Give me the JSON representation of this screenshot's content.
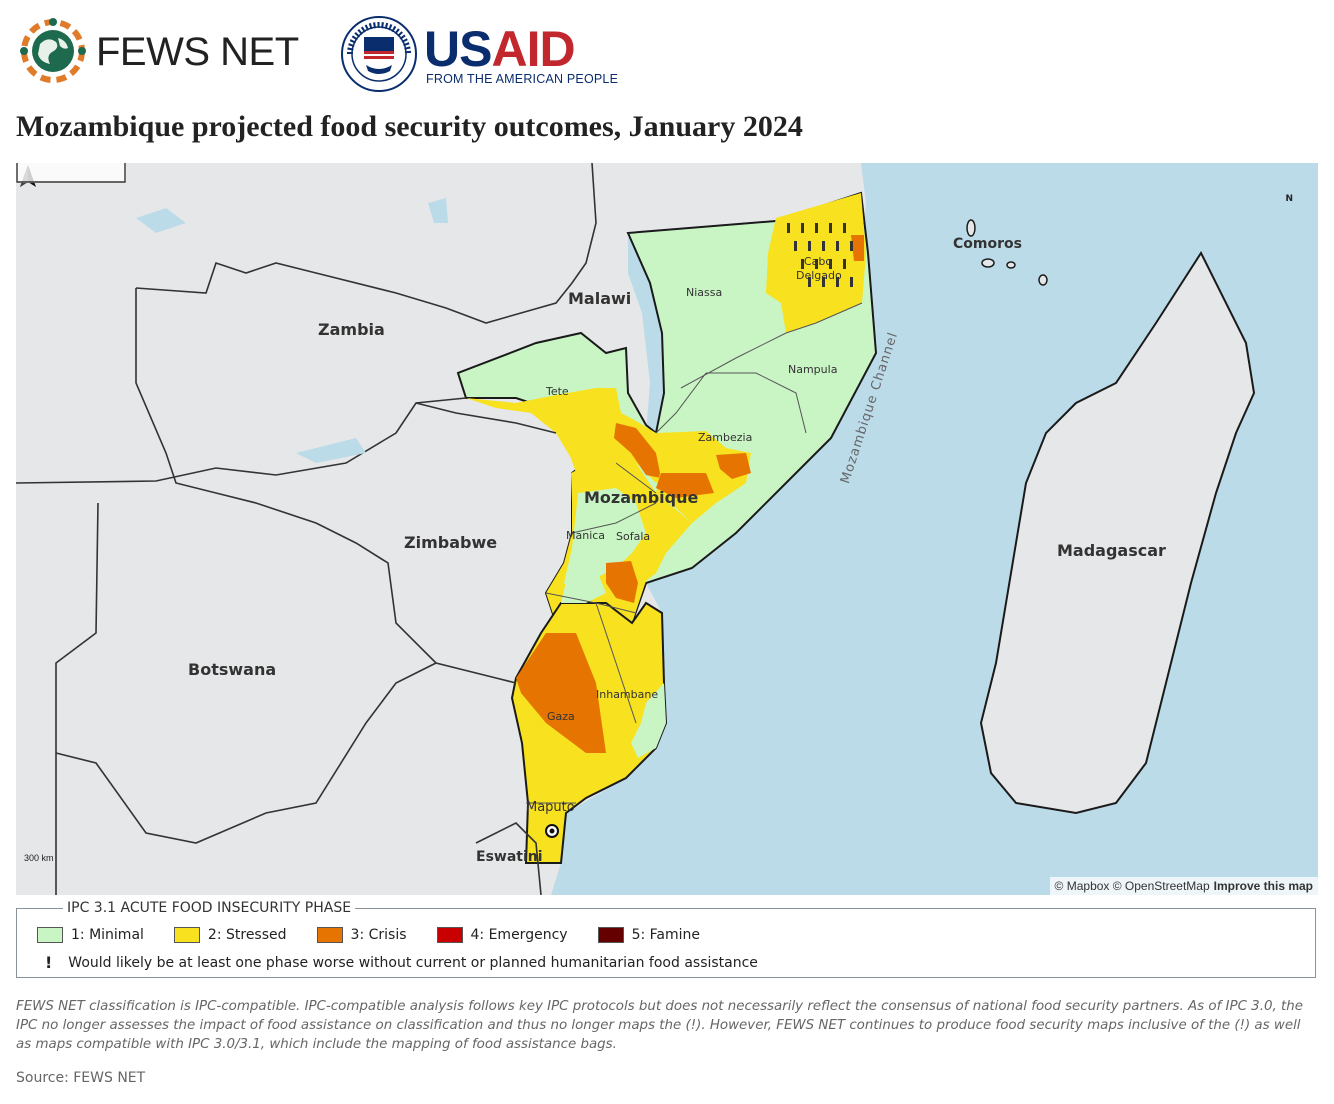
{
  "header": {
    "fews_logo_name": "FEWS NET",
    "usaid_wordmark": "USAID",
    "usaid_tagline": "FROM THE AMERICAN PEOPLE",
    "usaid_seal_text": "UNITED STATES AGENCY INTERNATIONAL DEVELOPMENT"
  },
  "title": "Mozambique projected food security outcomes, January 2024",
  "map": {
    "labels": {
      "countries": {
        "zambia": "Zambia",
        "malawi": "Malawi",
        "zimbabwe": "Zimbabwe",
        "botswana": "Botswana",
        "mozambique": "Mozambique",
        "madagascar": "Madagascar",
        "comoros": "Comoros",
        "eswatini": "Eswatini"
      },
      "provinces": {
        "niassa": "Niassa",
        "cabo_delgado": "Cabo Delgado",
        "nampula": "Nampula",
        "tete": "Tete",
        "zambezia": "Zambezia",
        "manica": "Manica",
        "sofala": "Sofala",
        "inhambane": "Inhambane",
        "gaza": "Gaza",
        "maputo": "Maputo"
      },
      "water": "Mozambique Channel"
    },
    "north_label": "N",
    "scale_label": "300 km",
    "attribution": "© Mapbox © OpenStreetMap",
    "improve_link": "Improve this map"
  },
  "legend": {
    "title": "IPC 3.1 ACUTE FOOD INSECURITY PHASE",
    "items": [
      {
        "label": "1: Minimal",
        "color": "#c9f5c5"
      },
      {
        "label": "2: Stressed",
        "color": "#f8e11f"
      },
      {
        "label": "3: Crisis",
        "color": "#e67400"
      },
      {
        "label": "4: Emergency",
        "color": "#c80000"
      },
      {
        "label": "5: Famine",
        "color": "#640000"
      }
    ],
    "note_symbol": "!",
    "note": "Would likely be at least one phase worse without current or planned humanitarian food assistance"
  },
  "footnote": "FEWS NET classification is IPC-compatible. IPC-compatible analysis follows key IPC protocols but does not necessarily reflect the consensus of national food security partners. As of IPC 3.0, the IPC no longer assesses the impact of food assistance on classification and thus no longer maps the (!). However, FEWS NET continues to produce food security maps inclusive of the (!) as well as maps compatible with IPC 3.0/3.1, which include the mapping of food assistance bags.",
  "source": "Source: FEWS NET",
  "colors": {
    "water": "#bcdbe9",
    "land": "#e6e7e8",
    "minimal": "#c9f5c5",
    "stressed": "#f8e11f",
    "crisis": "#e67400",
    "usaid_blue": "#0a2d6e",
    "usaid_red": "#c1272d"
  }
}
